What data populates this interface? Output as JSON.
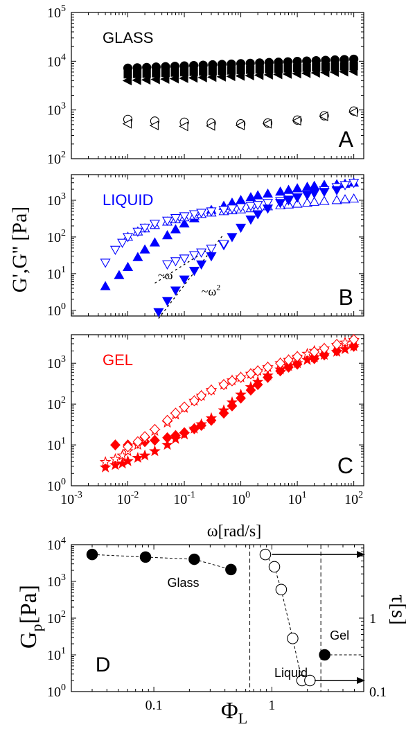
{
  "y_label_abc": "G',G'' [Pa]",
  "x_label_abc": "ω[rad/s]",
  "panel_d_ylabel_main": "G",
  "panel_d_ylabel_sub": "p",
  "panel_d_ylabel_unit": "[Pa]",
  "panel_d_xlabel_main": "Φ",
  "panel_d_xlabel_sub": "L",
  "panel_d_right_label": "τ",
  "panel_d_right_unit": "[s]",
  "chart_data": [
    {
      "type": "scatter",
      "panel": "A",
      "title": "GLASS",
      "title_color": "#000000",
      "xscale": "log",
      "yscale": "log",
      "xlim": [
        0.001,
        150
      ],
      "ylim": [
        100,
        100000
      ],
      "yticks": [
        {
          "v": 100,
          "label": "10",
          "exp": "2"
        },
        {
          "v": 1000,
          "label": "10",
          "exp": "3"
        },
        {
          "v": 10000,
          "label": "10",
          "exp": "4"
        },
        {
          "v": 100000,
          "label": "10",
          "exp": "5"
        }
      ],
      "series": [
        {
          "marker": "circle",
          "filled": true,
          "color": "#000000",
          "x": [
            0.01,
            100
          ],
          "y": [
            7200,
            11000
          ],
          "n": 25
        },
        {
          "marker": "square",
          "filled": true,
          "color": "#000000",
          "x": [
            0.01,
            100
          ],
          "y": [
            5400,
            8000
          ],
          "n": 25
        },
        {
          "marker": "tri-left",
          "filled": true,
          "color": "#000000",
          "x": [
            0.01,
            100
          ],
          "y": [
            4000,
            6200
          ],
          "n": 25
        },
        {
          "marker": "circle",
          "filled": false,
          "color": "#000000",
          "x": [
            0.01,
            0.03,
            0.1,
            0.3,
            1,
            3,
            10,
            30,
            100
          ],
          "y": [
            640,
            590,
            560,
            540,
            520,
            540,
            620,
            760,
            950
          ]
        },
        {
          "marker": "tri-left",
          "filled": false,
          "color": "#000000",
          "x": [
            0.01,
            0.03,
            0.1,
            0.3,
            1,
            3,
            10,
            30,
            100
          ],
          "y": [
            520,
            480,
            460,
            470,
            480,
            520,
            600,
            740,
            900
          ]
        }
      ]
    },
    {
      "type": "scatter",
      "panel": "B",
      "title": "LIQUID",
      "title_color": "#0000ff",
      "xscale": "log",
      "yscale": "log",
      "xlim": [
        0.001,
        150
      ],
      "ylim": [
        0.7,
        5000
      ],
      "yticks": [
        {
          "v": 1,
          "label": "10",
          "exp": "0"
        },
        {
          "v": 10,
          "label": "10",
          "exp": "1"
        },
        {
          "v": 100,
          "label": "10",
          "exp": "2"
        },
        {
          "v": 1000,
          "label": "10",
          "exp": "3"
        }
      ],
      "annotations": [
        {
          "text": "~ω",
          "x": 0.034,
          "y": 7
        },
        {
          "text": "~ω",
          "sup": "2",
          "x": 0.2,
          "y": 2.5
        }
      ],
      "slope_lines": [
        {
          "x": [
            0.03,
            0.35
          ],
          "y": [
            5.5,
            60
          ]
        },
        {
          "x": [
            0.035,
            0.5
          ],
          "y": [
            0.6,
            120
          ]
        }
      ],
      "series": [
        {
          "marker": "tri-up",
          "filled": true,
          "color": "#0000ff",
          "x": [
            0.004,
            0.007,
            0.01,
            0.015,
            0.02,
            0.03,
            0.05,
            0.07,
            0.1,
            0.15,
            0.2,
            0.3,
            0.5,
            0.7,
            1,
            1.5,
            2,
            3,
            5,
            7,
            10,
            15,
            20,
            30,
            50,
            70,
            100
          ],
          "y": [
            4.5,
            9,
            15,
            28,
            45,
            70,
            110,
            160,
            230,
            320,
            420,
            540,
            700,
            850,
            1000,
            1200,
            1350,
            1500,
            1700,
            1900,
            2100,
            2300,
            2450,
            2600,
            2700,
            2800,
            3000
          ]
        },
        {
          "marker": "tri-up",
          "filled": false,
          "color": "#0000ff",
          "x": [
            0.01,
            0.015,
            0.02,
            0.03,
            0.05,
            0.07,
            0.1,
            0.15,
            0.2,
            0.3,
            0.5,
            0.7,
            1,
            1.5,
            2,
            3,
            5,
            7,
            10,
            15,
            20,
            30,
            50,
            70,
            100
          ],
          "y": [
            100,
            140,
            170,
            210,
            260,
            300,
            340,
            380,
            420,
            460,
            500,
            530,
            560,
            600,
            640,
            680,
            720,
            760,
            800,
            850,
            900,
            950,
            1000,
            1050,
            1100
          ]
        },
        {
          "marker": "tri-down",
          "filled": false,
          "color": "#0000ff",
          "x": [
            0.004,
            0.006,
            0.008,
            0.01,
            0.015,
            0.02,
            0.03,
            0.05,
            0.07,
            0.1,
            0.15,
            0.2,
            0.3,
            0.5,
            0.7,
            1,
            1.5,
            2,
            3,
            5,
            7,
            10,
            15,
            20,
            30,
            50,
            70,
            100
          ],
          "y": [
            20,
            45,
            70,
            100,
            140,
            180,
            230,
            280,
            330,
            370,
            420,
            460,
            500,
            550,
            600,
            650,
            700,
            750,
            850,
            950,
            1050,
            1200,
            1400,
            1600,
            1900,
            2300,
            2600,
            3000
          ]
        },
        {
          "marker": "tri-down",
          "filled": true,
          "color": "#0000ff",
          "x": [
            0.035,
            0.05,
            0.07,
            0.1,
            0.15,
            0.2,
            0.3,
            0.5,
            0.7,
            1,
            1.5,
            2,
            3,
            5,
            7,
            10,
            15,
            20,
            30,
            50
          ],
          "y": [
            0.9,
            1.8,
            3.5,
            7,
            12,
            18,
            30,
            60,
            100,
            180,
            300,
            420,
            600,
            850,
            1000,
            1200,
            1400,
            1550,
            1700,
            1900
          ]
        },
        {
          "marker": "tri-down",
          "filled": false,
          "color": "#0000ff",
          "x": [
            0.05,
            0.07,
            0.1,
            0.15,
            0.2,
            0.3,
            0.5
          ],
          "y": [
            18,
            22,
            26,
            32,
            38,
            48,
            65
          ]
        }
      ]
    },
    {
      "type": "scatter",
      "panel": "C",
      "title": "GEL",
      "title_color": "#ff0000",
      "xscale": "log",
      "yscale": "log",
      "xlim": [
        0.001,
        150
      ],
      "ylim": [
        1,
        5000
      ],
      "xlabel": "ω[rad/s]",
      "yticks": [
        {
          "v": 1,
          "label": "10",
          "exp": "0"
        },
        {
          "v": 10,
          "label": "10",
          "exp": "1"
        },
        {
          "v": 100,
          "label": "10",
          "exp": "2"
        },
        {
          "v": 1000,
          "label": "10",
          "exp": "3"
        }
      ],
      "xticks": [
        {
          "v": 0.001,
          "label": "10",
          "exp": "-3"
        },
        {
          "v": 0.01,
          "label": "10",
          "exp": "-2"
        },
        {
          "v": 0.1,
          "label": "10",
          "exp": "-1"
        },
        {
          "v": 1,
          "label": "10",
          "exp": "0"
        },
        {
          "v": 10,
          "label": "10",
          "exp": "1"
        },
        {
          "v": 100,
          "label": "10",
          "exp": "2"
        }
      ],
      "series": [
        {
          "marker": "star",
          "filled": true,
          "color": "#ff0000",
          "x": [
            0.004,
            0.006,
            0.008,
            0.01,
            0.015,
            0.02,
            0.03,
            0.05,
            0.07,
            0.1,
            0.15,
            0.2,
            0.3,
            0.5,
            0.7,
            1,
            1.5,
            2,
            3,
            5,
            7,
            10,
            15,
            20,
            30,
            50,
            70,
            100
          ],
          "y": [
            2.8,
            3.2,
            3.5,
            4,
            4.8,
            5.5,
            7,
            10,
            14,
            18,
            25,
            32,
            45,
            70,
            110,
            170,
            260,
            350,
            500,
            700,
            850,
            1000,
            1200,
            1400,
            1600,
            1900,
            2200,
            2600
          ]
        },
        {
          "marker": "diamond",
          "filled": true,
          "color": "#ff0000",
          "x": [
            0.006,
            0.01,
            0.015,
            0.02,
            0.03,
            0.05,
            0.07,
            0.1,
            0.15,
            0.2,
            0.3,
            0.5,
            0.7,
            1,
            1.5,
            2,
            3,
            5,
            7,
            10,
            20,
            30,
            50,
            100
          ],
          "y": [
            10,
            10,
            11,
            12,
            13,
            15,
            17,
            20,
            25,
            30,
            40,
            60,
            90,
            140,
            220,
            300,
            450,
            650,
            800,
            950,
            1300,
            1600,
            2000,
            2600
          ]
        },
        {
          "marker": "star",
          "filled": false,
          "color": "#ff0000",
          "x": [
            0.004,
            0.006,
            0.008,
            0.01,
            0.015,
            0.02,
            0.03,
            0.05,
            0.07,
            0.1,
            0.15,
            0.2,
            0.3,
            0.5,
            0.7,
            1,
            1.5,
            2,
            3,
            5,
            7,
            10,
            15,
            20,
            30,
            50,
            70,
            100
          ],
          "y": [
            3.8,
            4.5,
            5.5,
            7,
            10,
            14,
            22,
            35,
            55,
            80,
            120,
            160,
            220,
            300,
            380,
            450,
            550,
            650,
            800,
            1000,
            1200,
            1450,
            1700,
            2000,
            2300,
            2800,
            3200,
            3700
          ]
        },
        {
          "marker": "diamond",
          "filled": false,
          "color": "#ff0000",
          "x": [
            0.01,
            0.015,
            0.02,
            0.03,
            0.05,
            0.07,
            0.1,
            0.15,
            0.2,
            0.3,
            0.5,
            0.7,
            1,
            1.5,
            2,
            3,
            5,
            7,
            10,
            20,
            30,
            50,
            100
          ],
          "y": [
            9,
            12,
            16,
            24,
            40,
            60,
            85,
            120,
            160,
            220,
            300,
            370,
            450,
            550,
            650,
            800,
            1000,
            1200,
            1450,
            1900,
            2300,
            2900,
            3800
          ]
        }
      ]
    },
    {
      "type": "scatter",
      "panel": "D",
      "xscale": "log",
      "yscale": "log",
      "xlim": [
        0.02,
        6
      ],
      "ylim": [
        1,
        10000
      ],
      "xticks": [
        {
          "v": 0.1,
          "label": "0.1"
        },
        {
          "v": 1,
          "label": "1"
        }
      ],
      "yticks": [
        {
          "v": 1,
          "label": "10",
          "exp": "0"
        },
        {
          "v": 10,
          "label": "10",
          "exp": "1"
        },
        {
          "v": 100,
          "label": "10",
          "exp": "2"
        },
        {
          "v": 1000,
          "label": "10",
          "exp": "3"
        },
        {
          "v": 10000,
          "label": "10",
          "exp": "4"
        }
      ],
      "y2ticks": [
        {
          "v": 0.1,
          "label": "0.1"
        },
        {
          "v": 1,
          "label": "1"
        }
      ],
      "y2lim": [
        0.1,
        10
      ],
      "vlines": [
        0.65,
        2.6
      ],
      "annotations": [
        {
          "text": "Glass",
          "x": 0.13,
          "y": 700
        },
        {
          "text": "Liquid",
          "x": 1.05,
          "y": 2.5
        },
        {
          "text": "Gel",
          "x": 3.1,
          "y": 26
        },
        {
          "text": "D",
          "x": 0.032,
          "y": 3.5
        }
      ],
      "series": [
        {
          "name": "Glass",
          "marker": "circle",
          "filled": true,
          "color": "#000000",
          "x": [
            0.03,
            0.085,
            0.22,
            0.45
          ],
          "y": [
            5400,
            4600,
            4000,
            2100
          ]
        },
        {
          "name": "Liquid",
          "marker": "circle",
          "filled": false,
          "color": "#000000",
          "x": [
            0.88,
            1.05,
            1.2,
            1.5,
            1.8,
            2.1
          ],
          "y": [
            5400,
            2500,
            600,
            28,
            2,
            2
          ]
        },
        {
          "name": "Gel",
          "marker": "circle",
          "filled": true,
          "color": "#000000",
          "x": [
            2.8
          ],
          "y": [
            10
          ]
        }
      ]
    }
  ]
}
